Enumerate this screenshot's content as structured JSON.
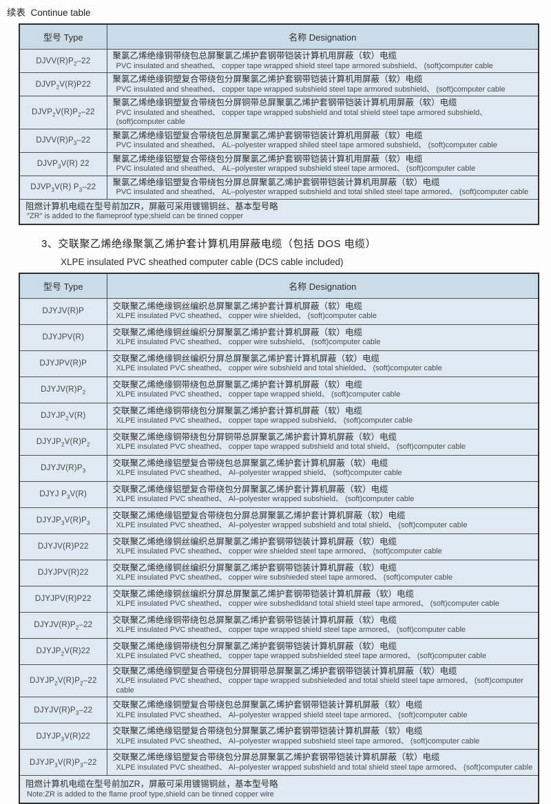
{
  "page": {
    "continue_label": "续表  Continue table"
  },
  "columns": {
    "type": "型号 Type",
    "designation": "名称 Designation"
  },
  "table1": {
    "rows": [
      {
        "type": "DJVV(R)P~2~–22",
        "zh": "聚氯乙烯绝缘铜带绕包总屏聚氯乙烯护套钢带铠装计算机用屏蔽（软）电缆",
        "en": "PVC insulated and sheathed、 copper tape wrapped shield steel tape armored subshield、 (soft)computer cable"
      },
      {
        "type": "DJVP~2~V(R)P22",
        "zh": "聚氯乙烯绝缘铜塑复合带绕包分屏聚氯乙烯护套钢带铠装计算机用屏蔽（软）电缆",
        "en": "PVC insulated and sheathed、 copper tape wrapped subshield steel tape armored subshield、 (soft)computer cable"
      },
      {
        "type": "DJVP~2~V(R)P~2~–22",
        "zh": "聚氯乙烯绝缘铜塑复合带绕包分屏铜带总屏聚氯乙烯护套钢带铠装计算机用屏蔽（软）电缆",
        "en": "PVC insulated and sheathed、 copper tape wrapped subshield and total shield steel tape armored subshield、 (soft)computer cable"
      },
      {
        "type": "DJVV(R)P~3~–22",
        "zh": "聚氯乙烯绝缘铝塑复合带绕包总屏聚氯乙烯护套钢带铠装计算机用屏蔽（软）电缆",
        "en": "PVC insulated and sheathed、 AL–polyester wrapped shiled steel tape armored subshield、 (soft)computer cable"
      },
      {
        "type": "DJVP~3~V(R) 22",
        "zh": "聚氯乙烯绝缘铝塑复合带绕包分屏聚氯乙烯护套钢带铠装计算机用屏蔽（软）电缆",
        "en": "PVC insulated and sheathed、 AL–polyester wrapped subshield steel tape armored、 (soft)computer cable"
      },
      {
        "type": "DJVP~3~V(R) P~3~–22",
        "zh": "聚氯乙烯绝缘铝塑复合带绕包分屏总屏聚氯乙烯护套钢带铠装计算机用屏蔽（软）电缆",
        "en": "PVC insulated and sheathed、 AL–polyester wrapped subshield and total shiled steel tape armored、 (soft)computer cable"
      }
    ],
    "note_zh": "阻燃计算机电缆在型号前加ZR，屏蔽可采用镀锡铜丝、基本型号略",
    "note_en": "″ZR″ is added to the flameproof type;shield can be tinned copper"
  },
  "section": {
    "title_zh": "3、交联聚乙烯绝缘聚氯乙烯护套计算机用屏蔽电缆（包括 DOS 电缆）",
    "title_en": "XLPE insulated PVC sheathed computer cable (DCS cable included)"
  },
  "table2": {
    "rows": [
      {
        "type": "DJYJV(R)P",
        "zh": "交联聚乙烯绝缘铜丝编织总屏聚氯乙烯护套计算机屏蔽（软）电缆",
        "en": "XLPE insulated PVC sheathed、 copper wire shielded、 (soft)computer cable"
      },
      {
        "type": "DJYJPV(R)",
        "zh": "交联聚乙烯绝缘铜丝编织分屏聚氯乙烯护套计算机屏蔽（软）电缆",
        "en": "XLPE insulated PVC sheathed、 copper wire subshield、 (soft)computer cable"
      },
      {
        "type": "DJYJPV(R)P",
        "zh": "交联聚乙烯绝缘铜丝编织分屏总屏聚氯乙烯护套计算机屏蔽（软）电缆",
        "en": "XLPE insulated PVC sheathed、 copper wire subshield and total shielded、 (soft)computer cable"
      },
      {
        "type": "DJYJV(R)P~2~",
        "zh": "交联聚乙烯绝缘铜带绕包总屏聚氯乙烯护套计算机屏蔽（软）电缆",
        "en": "XLPE insulated PVC sheathed、 copper tape wrapped shield、 (soft)computer cable"
      },
      {
        "type": "DJYJP~2~V(R)",
        "zh": "交联聚乙烯绝缘铜带绕包分屏聚氯乙烯护套计算机屏蔽（软）电缆",
        "en": "XLPE insulated PVC sheathed、 copper tape wrapped subshield、 (soft)computer cable"
      },
      {
        "type": "DJYJP~2~V(R)P~2~",
        "zh": "交联聚乙烯绝缘铜带绕包分屏铜带总屏聚氯乙烯护套计算机屏蔽（软）电缆",
        "en": "XLPE insulated PVC sheathed、 copper tape wrapped subshield and total shield、 (soft)computer cable"
      },
      {
        "type": "DJYJV(R)P~3~",
        "zh": "交联聚乙烯绝缘铝塑复合带绕包总屏聚氯乙烯护套计算机屏蔽（软）电缆",
        "en": "XLPE insulated PVC sheathed、 Al–polyester wrapped shield、 (soft)computer cable"
      },
      {
        "type": "DJYJ P~3~V(R)",
        "zh": "交联聚乙烯绝缘铝塑复合带绕包分屏聚氯乙烯护套计算机屏蔽（软）电缆",
        "en": "XLPE insulated PVC sheathed、 Al–polyester wrapped subshield、 (soft)computer cable"
      },
      {
        "type": "DJYJP~3~V(R)P~3~",
        "zh": "交联聚乙烯绝缘铝塑复合带绕包分屏总屏聚氯乙烯护套计算机屏蔽（软）电缆",
        "en": "XLPE insulated PVC sheathed、 Al–polyester wrapped subshield and total shield、 (soft)computer cable"
      },
      {
        "type": "DJYJV(R)P22",
        "zh": "交联聚乙烯绝缘铜丝编织总屏聚氯乙烯护套钢带铠装计算机屏蔽（软）电缆",
        "en": "XLPE insulated PVC sheathed、 copper wire shielded steel tape armored、 (soft)computer cable"
      },
      {
        "type": "DJYJPV(R)22",
        "zh": "交联聚乙烯绝缘铜丝编织分屏聚氯乙烯护套钢带铠装计算机屏蔽（软）电缆",
        "en": "XLPE insulated PVC sheathed、 copper wire subshieded steel tape armored、 (soft)computer cable"
      },
      {
        "type": "DJYJPV(R)P22",
        "zh": "交联聚乙烯绝缘铜丝编织分屏总屏聚氯乙烯护套钢带铠装计算机屏蔽（软）电缆",
        "en": "XLPE insulated PVC sheathed、 copper wire subshedldand total shield steel tape armored、 (soft)computer cable"
      },
      {
        "type": "DJYJV(R)P~2~–22",
        "zh": "交联聚乙烯绝缘铜带绕包总屏聚氯乙烯护套钢带铠装计算机屏蔽（软）电缆",
        "en": "XLPE insulated PVC sheathed、 copper tape wrapped shield steel tape armored、 (soft)computer cable"
      },
      {
        "type": "DJYJP~2~V(R)22",
        "zh": "交联聚乙烯绝缘铜带绕包分屏聚氯乙烯护套钢带铠装计算机屏蔽（软）电缆",
        "en": "XLPE insulated PVC sheathed、 copper tape wrapped subshielded steel tape armored、 (soft)computer cable"
      },
      {
        "type": "DJYJP~2~V(R)P~2~–22",
        "zh": "交联聚乙烯绝缘铜塑复合带绕包分屏铜带总屏聚氯乙烯护套钢带铠装计算机屏蔽（软）电缆",
        "en": "XLPE insulated PVC sheathed、 copper tape wrapped subshieleded and total shield steel tape armored、 (soft)computer cable"
      },
      {
        "type": "DJYJV(R)P~3~–22",
        "zh": "交联聚乙烯绝缘铜塑复合带绕包总屏聚氯乙烯护套钢带铠装计算机屏蔽（软）电缆",
        "en": "XLPE insulated PVC sheathed、 Al–polyester wrapped shield steel tape armored、 (soft)computer cable"
      },
      {
        "type": "DJYJP~3~V(R)22",
        "zh": "交联聚乙烯绝缘铝塑复合带绕包分屏聚氯乙烯护套钢带铠装计算机屏蔽（软）电缆",
        "en": "XLPE insulated PVC sheathed、 Al–polyester wrapped subshield steel tape armored、 (soft)computer cable"
      },
      {
        "type": "DJYJP~3~V(R)P~3~–22",
        "zh": "交联聚乙烯绝缘铝塑复合带绕包分屏总屏聚氯乙烯护套钢带铠装计算机屏蔽（软）电缆",
        "en": "XLPE insulated PVC sheathed、 Al–polyester wrapped subshield and total shield steel tape armored、 (soft)computer cable"
      }
    ],
    "note_zh": "阻燃计算机电缆在型号前加ZR，屏蔽可采用镀锡铜丝，基本型号略",
    "note_en": "Note:ZR is added to the flame proof type,shield can be tinned copper wire"
  },
  "colors": {
    "header_bg": "#cbdbe8",
    "row_bg": "#dee9f2",
    "inner_border": "#4e4e4e",
    "outer_border": "#2e2e2e",
    "text": "#303030"
  }
}
